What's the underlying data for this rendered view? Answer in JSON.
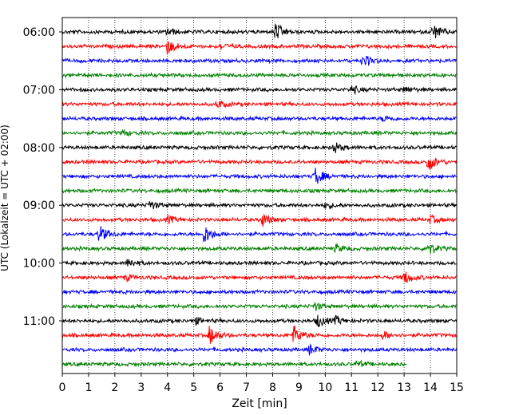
{
  "chart_data": {
    "type": "line",
    "xlabel": "Zeit  [min]",
    "ylabel": "UTC (Lokalzeit = UTC + 02:00)",
    "xlim": [
      0,
      15
    ],
    "x_ticks": [
      0,
      1,
      2,
      3,
      4,
      5,
      6,
      7,
      8,
      9,
      10,
      11,
      12,
      13,
      14,
      15
    ],
    "y_tick_labels": [
      "06:00",
      "07:00",
      "08:00",
      "09:00",
      "10:00",
      "11:00"
    ],
    "grid": "vertical-dotted",
    "trace_interval_min": 15,
    "trace_colors": [
      "#000000",
      "#ff0000",
      "#0000ff",
      "#008000"
    ],
    "traces": [
      {
        "label": "06:00",
        "events": [
          [
            4.0,
            0.4
          ],
          [
            8.1,
            1.0
          ],
          [
            14.1,
            0.8
          ]
        ],
        "end": 15
      },
      {
        "label": "06:15",
        "events": [
          [
            4.0,
            0.8
          ],
          [
            6.0,
            0.3
          ]
        ],
        "end": 15
      },
      {
        "label": "06:30",
        "events": [
          [
            11.4,
            0.3
          ],
          [
            11.5,
            0.3
          ]
        ],
        "end": 15
      },
      {
        "label": "06:45",
        "events": [],
        "end": 15
      },
      {
        "label": "07:00",
        "events": [
          [
            11.0,
            0.4
          ],
          [
            13.0,
            0.3
          ]
        ],
        "end": 15
      },
      {
        "label": "07:15",
        "events": [
          [
            5.9,
            0.4
          ]
        ],
        "end": 15
      },
      {
        "label": "07:30",
        "events": [
          [
            12.2,
            0.3
          ]
        ],
        "end": 15
      },
      {
        "label": "07:45",
        "events": [
          [
            2.3,
            0.3
          ]
        ],
        "end": 15
      },
      {
        "label": "08:00",
        "events": [
          [
            10.3,
            0.6
          ]
        ],
        "end": 15
      },
      {
        "label": "08:15",
        "events": [
          [
            13.9,
            1.0
          ]
        ],
        "end": 15
      },
      {
        "label": "08:30",
        "events": [
          [
            9.6,
            1.0
          ]
        ],
        "end": 15
      },
      {
        "label": "08:45",
        "events": [],
        "end": 15
      },
      {
        "label": "09:00",
        "events": [
          [
            3.3,
            0.5
          ],
          [
            10.0,
            0.3
          ]
        ],
        "end": 15
      },
      {
        "label": "09:15",
        "events": [
          [
            4.0,
            0.4
          ],
          [
            7.6,
            0.7
          ],
          [
            14.0,
            0.4
          ]
        ],
        "end": 15
      },
      {
        "label": "09:30",
        "events": [
          [
            1.4,
            0.9
          ],
          [
            5.4,
            1.0
          ]
        ],
        "end": 15
      },
      {
        "label": "09:45",
        "events": [
          [
            10.4,
            0.4
          ],
          [
            13.9,
            0.7
          ]
        ],
        "end": 15
      },
      {
        "label": "10:00",
        "events": [
          [
            2.5,
            0.5
          ]
        ],
        "end": 15
      },
      {
        "label": "10:15",
        "events": [
          [
            2.4,
            0.3
          ],
          [
            13.0,
            0.7
          ]
        ],
        "end": 15
      },
      {
        "label": "10:30",
        "events": [],
        "end": 15
      },
      {
        "label": "10:45",
        "events": [
          [
            9.6,
            0.4
          ]
        ],
        "end": 15
      },
      {
        "label": "11:00",
        "events": [
          [
            5.0,
            0.4
          ],
          [
            9.7,
            0.7
          ],
          [
            10.4,
            0.4
          ]
        ],
        "end": 15
      },
      {
        "label": "11:15",
        "events": [
          [
            5.6,
            1.0
          ],
          [
            8.8,
            1.0
          ],
          [
            12.2,
            0.4
          ]
        ],
        "end": 15
      },
      {
        "label": "11:30",
        "events": [
          [
            9.4,
            0.5
          ]
        ],
        "end": 15
      },
      {
        "label": "11:45",
        "events": [
          [
            11.2,
            0.3
          ]
        ],
        "end": 13.1
      }
    ]
  }
}
